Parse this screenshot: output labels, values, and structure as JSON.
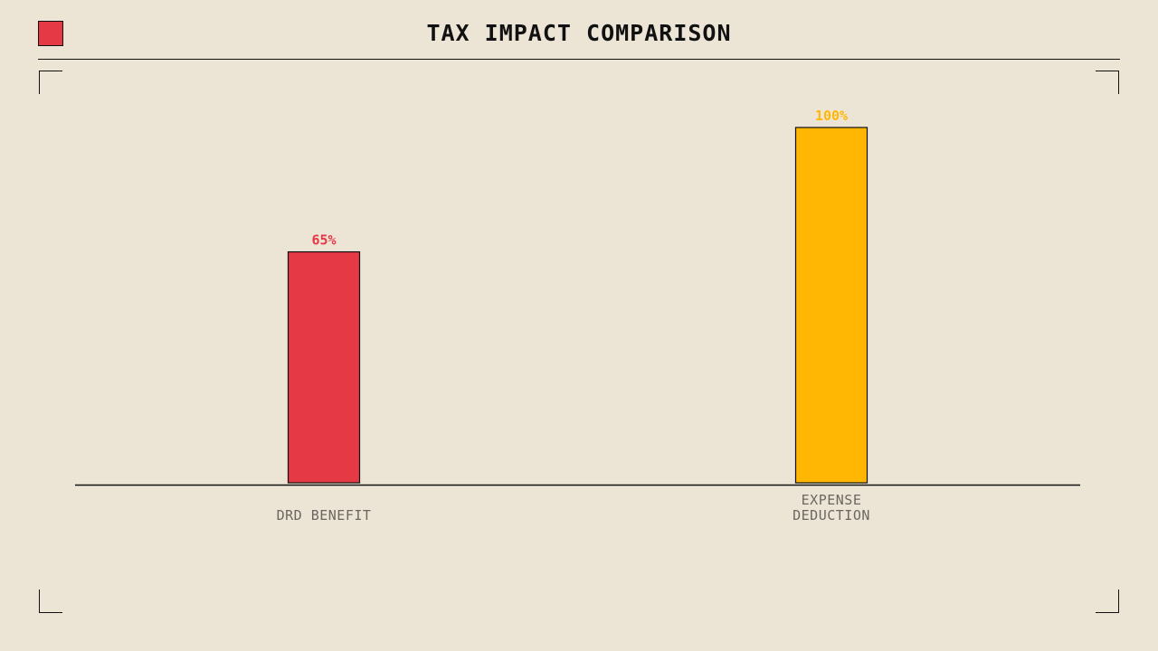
{
  "title": "TAX IMPACT COMPARISON",
  "colors": {
    "background": "#ece5d6",
    "logo_square": "#e63946",
    "axis": "#111111",
    "category_text": "#6b6760"
  },
  "chart_data": {
    "type": "bar",
    "title": "TAX IMPACT COMPARISON",
    "categories": [
      "DRD BENEFIT",
      "EXPENSE DEDUCTION"
    ],
    "category_lines": [
      [
        "DRD BENEFIT"
      ],
      [
        "EXPENSE",
        "DEDUCTION"
      ]
    ],
    "values": [
      65,
      100
    ],
    "value_labels": [
      "65%",
      "100%"
    ],
    "bar_colors": [
      "#e63946",
      "#ffb703"
    ],
    "ylim": [
      0,
      100
    ],
    "xlabel": "",
    "ylabel": "",
    "grid": false,
    "legend": "none"
  }
}
